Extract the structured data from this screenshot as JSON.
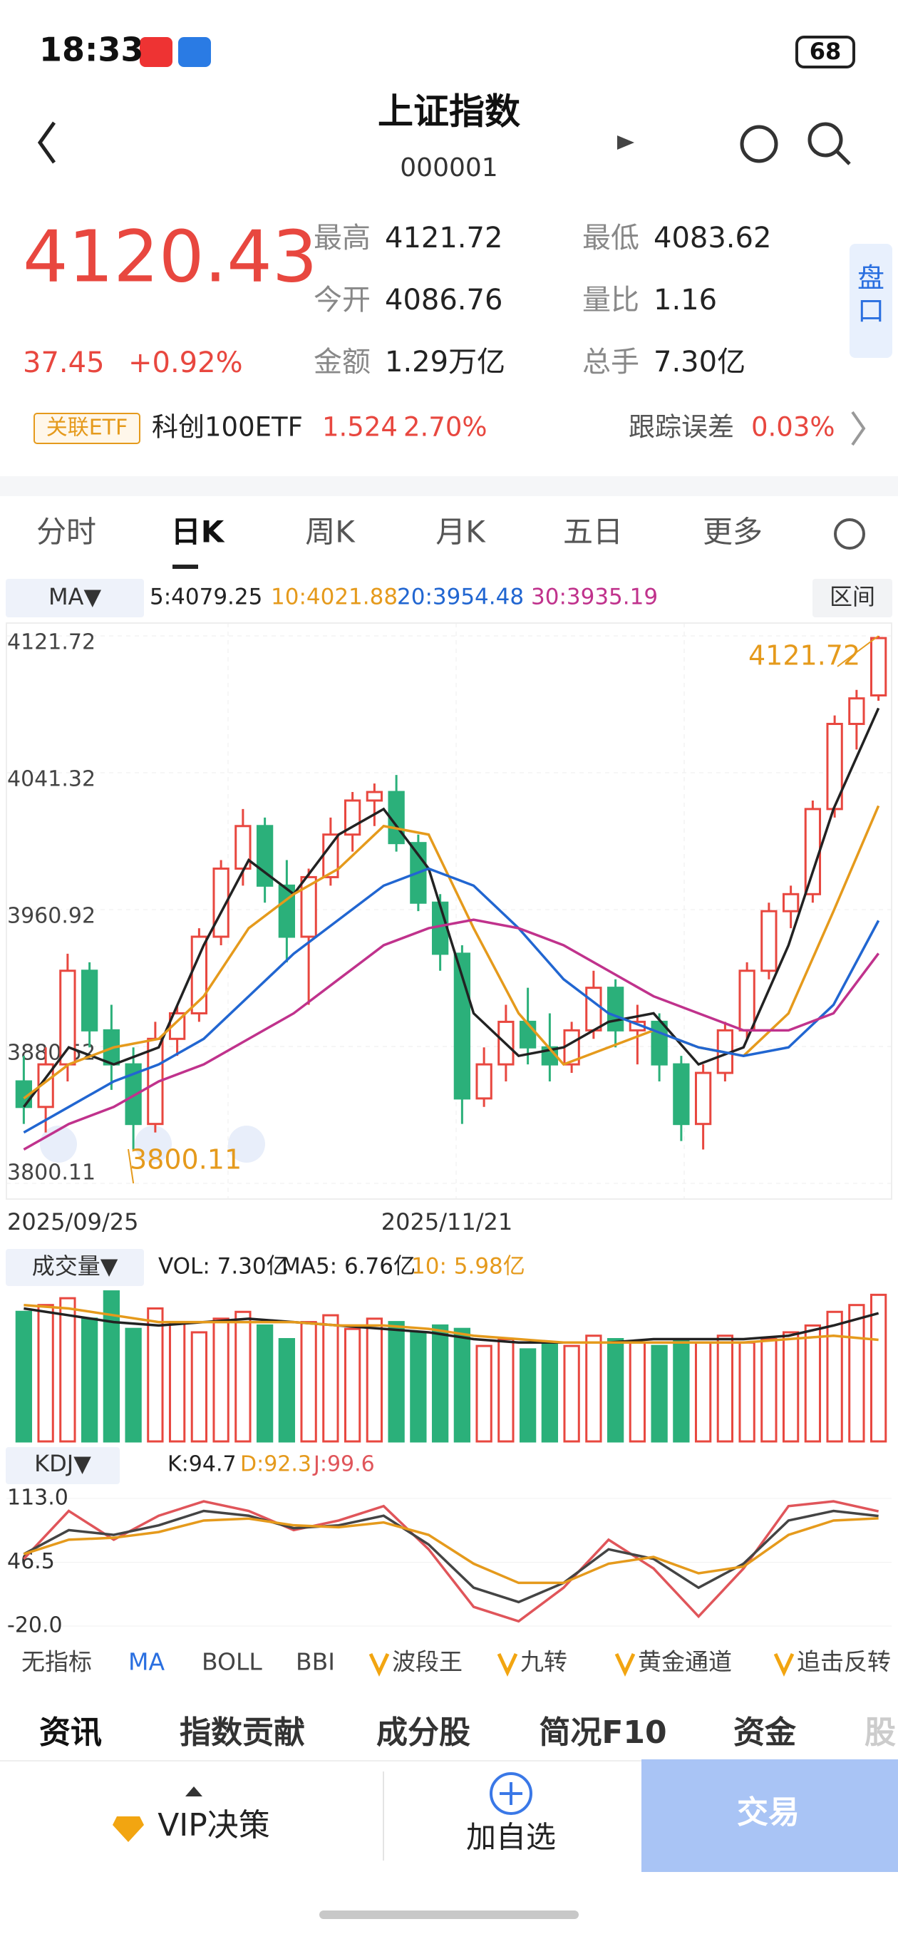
{
  "status_bar": {
    "time": "18:33",
    "battery": "68"
  },
  "header": {
    "title": "上证指数",
    "code": "000001"
  },
  "quote": {
    "price": "4120.43",
    "change": "37.45",
    "change_pct": "+0.92%",
    "stats": [
      {
        "label": "最高",
        "value": "4121.72"
      },
      {
        "label": "最低",
        "value": "4083.62"
      },
      {
        "label": "今开",
        "value": "4086.76"
      },
      {
        "label": "量比",
        "value": "1.16"
      },
      {
        "label": "金额",
        "value": "1.29万亿"
      },
      {
        "label": "总手",
        "value": "7.30亿"
      }
    ],
    "side_tab": "盘口"
  },
  "etf": {
    "tag": "关联ETF",
    "name": "科创100ETF",
    "price": "1.524",
    "pct": "2.70%",
    "tracking_label": "跟踪误差",
    "tracking": "0.03%"
  },
  "tabs": [
    "分时",
    "日K",
    "周K",
    "月K",
    "五日",
    "更多"
  ],
  "kline": {
    "type": "candlestick",
    "legend_button": "MA▼",
    "ma_legend": [
      {
        "text": "5:4079.25",
        "color": "#222222"
      },
      {
        "text": "10:4021.88",
        "color": "#e59a1c"
      },
      {
        "text": "20:3954.48",
        "color": "#2166d1"
      },
      {
        "text": "30:3935.19",
        "color": "#c0328c"
      }
    ],
    "range_button": "区间",
    "ylim": [
      3800.11,
      4121.72
    ],
    "yticks": [
      3800.11,
      3880.52,
      3960.92,
      4041.32,
      4121.72
    ],
    "x_labels": [
      "2025/09/25",
      "2025/11/21"
    ],
    "high_label": "4121.72",
    "low_label": "3800.11",
    "up_color": "#e8473f",
    "down_color": "#2bb07a",
    "candles": [
      [
        3860,
        3875,
        3835,
        3845
      ],
      [
        3845,
        3880,
        3830,
        3870
      ],
      [
        3870,
        3935,
        3860,
        3925
      ],
      [
        3925,
        3930,
        3880,
        3890
      ],
      [
        3890,
        3905,
        3855,
        3870
      ],
      [
        3870,
        3880,
        3820,
        3835
      ],
      [
        3835,
        3895,
        3830,
        3885
      ],
      [
        3885,
        3905,
        3875,
        3900
      ],
      [
        3900,
        3950,
        3895,
        3945
      ],
      [
        3945,
        3990,
        3940,
        3985
      ],
      [
        3985,
        4020,
        3975,
        4010
      ],
      [
        4010,
        4015,
        3965,
        3975
      ],
      [
        3975,
        3990,
        3930,
        3945
      ],
      [
        3945,
        3985,
        3905,
        3980
      ],
      [
        3980,
        4015,
        3975,
        4005
      ],
      [
        4005,
        4030,
        3995,
        4025
      ],
      [
        4025,
        4035,
        4010,
        4030
      ],
      [
        4030,
        4040,
        3995,
        4000
      ],
      [
        4000,
        4005,
        3960,
        3965
      ],
      [
        3965,
        3970,
        3925,
        3935
      ],
      [
        3935,
        3940,
        3835,
        3850
      ],
      [
        3850,
        3880,
        3845,
        3870
      ],
      [
        3870,
        3905,
        3860,
        3895
      ],
      [
        3895,
        3915,
        3870,
        3880
      ],
      [
        3880,
        3900,
        3860,
        3870
      ],
      [
        3870,
        3895,
        3865,
        3890
      ],
      [
        3890,
        3925,
        3885,
        3915
      ],
      [
        3915,
        3920,
        3880,
        3890
      ],
      [
        3890,
        3905,
        3870,
        3895
      ],
      [
        3895,
        3900,
        3860,
        3870
      ],
      [
        3870,
        3875,
        3825,
        3835
      ],
      [
        3835,
        3870,
        3820,
        3865
      ],
      [
        3865,
        3895,
        3860,
        3890
      ],
      [
        3890,
        3930,
        3885,
        3925
      ],
      [
        3925,
        3965,
        3920,
        3960
      ],
      [
        3960,
        3975,
        3950,
        3970
      ],
      [
        3970,
        4025,
        3965,
        4020
      ],
      [
        4020,
        4075,
        4015,
        4070
      ],
      [
        4070,
        4090,
        4055,
        4085
      ],
      [
        4086.76,
        4121.72,
        4083.62,
        4120.43
      ]
    ],
    "ma_lines": [
      {
        "color": "#222222",
        "values": [
          3845,
          3880,
          3870,
          3880,
          3940,
          3990,
          3970,
          4005,
          4020,
          3985,
          3900,
          3875,
          3880,
          3895,
          3900,
          3870,
          3880,
          3940,
          4020,
          4079.25
        ]
      },
      {
        "color": "#e59a1c",
        "values": [
          3850,
          3870,
          3880,
          3885,
          3910,
          3950,
          3970,
          3985,
          4010,
          4005,
          3950,
          3900,
          3870,
          3880,
          3890,
          3880,
          3875,
          3900,
          3960,
          4021.88
        ]
      },
      {
        "color": "#2166d1",
        "values": [
          3830,
          3845,
          3860,
          3870,
          3885,
          3910,
          3935,
          3955,
          3975,
          3985,
          3975,
          3950,
          3920,
          3900,
          3890,
          3880,
          3875,
          3880,
          3905,
          3954.48
        ]
      },
      {
        "color": "#c0328c",
        "values": [
          3820,
          3835,
          3845,
          3860,
          3870,
          3885,
          3900,
          3920,
          3940,
          3950,
          3955,
          3950,
          3940,
          3925,
          3910,
          3900,
          3890,
          3890,
          3900,
          3935.19
        ]
      }
    ]
  },
  "volume": {
    "legend_button": "成交量▼",
    "legend": [
      {
        "text": "VOL: 7.30亿",
        "color": "#222222"
      },
      {
        "text": "MA5: 6.76亿",
        "color": "#222222"
      },
      {
        "text": "10: 5.98亿",
        "color": "#e59a1c"
      }
    ],
    "ylim": [
      3,
      7.6
    ],
    "values": [
      6.8,
      7.0,
      7.2,
      6.6,
      7.4,
      6.3,
      6.9,
      6.5,
      6.2,
      6.6,
      6.8,
      6.4,
      6.0,
      6.5,
      6.7,
      6.3,
      6.6,
      6.5,
      6.2,
      6.4,
      6.3,
      5.8,
      6.0,
      5.7,
      5.9,
      5.8,
      6.1,
      6.0,
      5.9,
      5.8,
      6.0,
      5.9,
      6.1,
      5.9,
      6.0,
      6.2,
      6.4,
      6.8,
      7.0,
      7.3
    ],
    "ma_lines": [
      {
        "color": "#222222",
        "values": [
          6.9,
          6.7,
          6.5,
          6.4,
          6.5,
          6.6,
          6.5,
          6.4,
          6.3,
          6.2,
          6.0,
          5.9,
          5.9,
          5.9,
          6.0,
          6.0,
          6.0,
          6.1,
          6.4,
          6.76
        ]
      },
      {
        "color": "#e59a1c",
        "values": [
          7.0,
          6.9,
          6.7,
          6.5,
          6.5,
          6.5,
          6.5,
          6.4,
          6.4,
          6.3,
          6.1,
          6.0,
          5.9,
          5.9,
          5.9,
          5.9,
          5.9,
          6.0,
          6.1,
          5.98
        ]
      }
    ]
  },
  "kdj": {
    "legend_button": "KDJ▼",
    "legend": [
      {
        "text": "K:94.7",
        "color": "#222222"
      },
      {
        "text": "D:92.3",
        "color": "#e59a1c"
      },
      {
        "text": "J:99.6",
        "color": "#e0555a"
      }
    ],
    "ylim": [
      -20,
      113
    ],
    "yticks": [
      {
        "value": 113,
        "label": "113.0"
      },
      {
        "value": 46.5,
        "label": "46.5"
      },
      {
        "value": -20,
        "label": "-20.0"
      }
    ],
    "lines": [
      {
        "color": "#e0555a",
        "values": [
          50,
          100,
          70,
          95,
          110,
          100,
          80,
          90,
          105,
          60,
          0,
          -15,
          20,
          70,
          40,
          -10,
          40,
          105,
          110,
          99.6
        ]
      },
      {
        "color": "#444444",
        "values": [
          55,
          80,
          75,
          85,
          100,
          95,
          82,
          85,
          95,
          65,
          20,
          5,
          25,
          60,
          50,
          20,
          45,
          90,
          100,
          94.7
        ]
      },
      {
        "color": "#e59a1c",
        "values": [
          55,
          70,
          72,
          78,
          90,
          92,
          85,
          83,
          88,
          75,
          45,
          25,
          25,
          45,
          52,
          35,
          42,
          75,
          90,
          92.3
        ]
      }
    ]
  },
  "indicators": [
    {
      "text": "无指标",
      "vip": false
    },
    {
      "text": "MA",
      "vip": false
    },
    {
      "text": "BOLL",
      "vip": false
    },
    {
      "text": "BBI",
      "vip": false
    },
    {
      "text": "波段王",
      "vip": true
    },
    {
      "text": "九转",
      "vip": true
    },
    {
      "text": "黄金通道",
      "vip": true
    },
    {
      "text": "追击反转",
      "vip": true
    }
  ],
  "bottom_tabs": [
    "资讯",
    "指数贡献",
    "成分股",
    "简况F10",
    "资金",
    "股"
  ],
  "bottom_bar": {
    "vip": "VIP决策",
    "watch": "加自选",
    "trade": "交易"
  }
}
